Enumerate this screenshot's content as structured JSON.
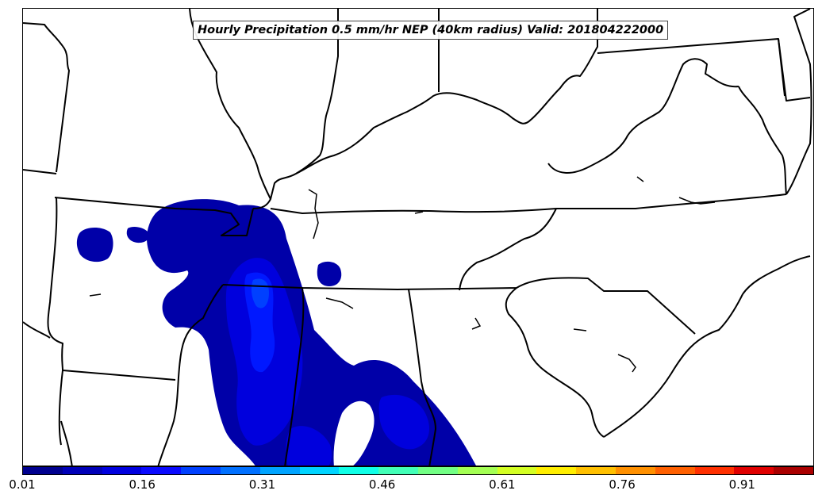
{
  "title": "Hourly Precipitation 0.5 mm/hr NEP (40km radius) Valid: 201804222000",
  "colorbar": {
    "colors": [
      "#00008f",
      "#0000b8",
      "#0000df",
      "#0a0aff",
      "#0040ff",
      "#0070ff",
      "#00a4ff",
      "#00d4ff",
      "#10ffe7",
      "#42ffb7",
      "#72ff84",
      "#a4ff54",
      "#d4ff24",
      "#ffee00",
      "#ffc000",
      "#ff9000",
      "#ff6000",
      "#ff3000",
      "#e00000",
      "#aa0000"
    ],
    "tick_labels": [
      "0.01",
      "0.16",
      "0.31",
      "0.46",
      "0.61",
      "0.76",
      "0.91"
    ],
    "tick_values": [
      0.01,
      0.16,
      0.31,
      0.46,
      0.61,
      0.76,
      0.91
    ],
    "range": [
      0.01,
      1.0
    ]
  },
  "precip_fill_colors": {
    "low": "#0000a8",
    "mid": "#0000dd",
    "high": "#0018ff",
    "peak": "#0040ff"
  }
}
